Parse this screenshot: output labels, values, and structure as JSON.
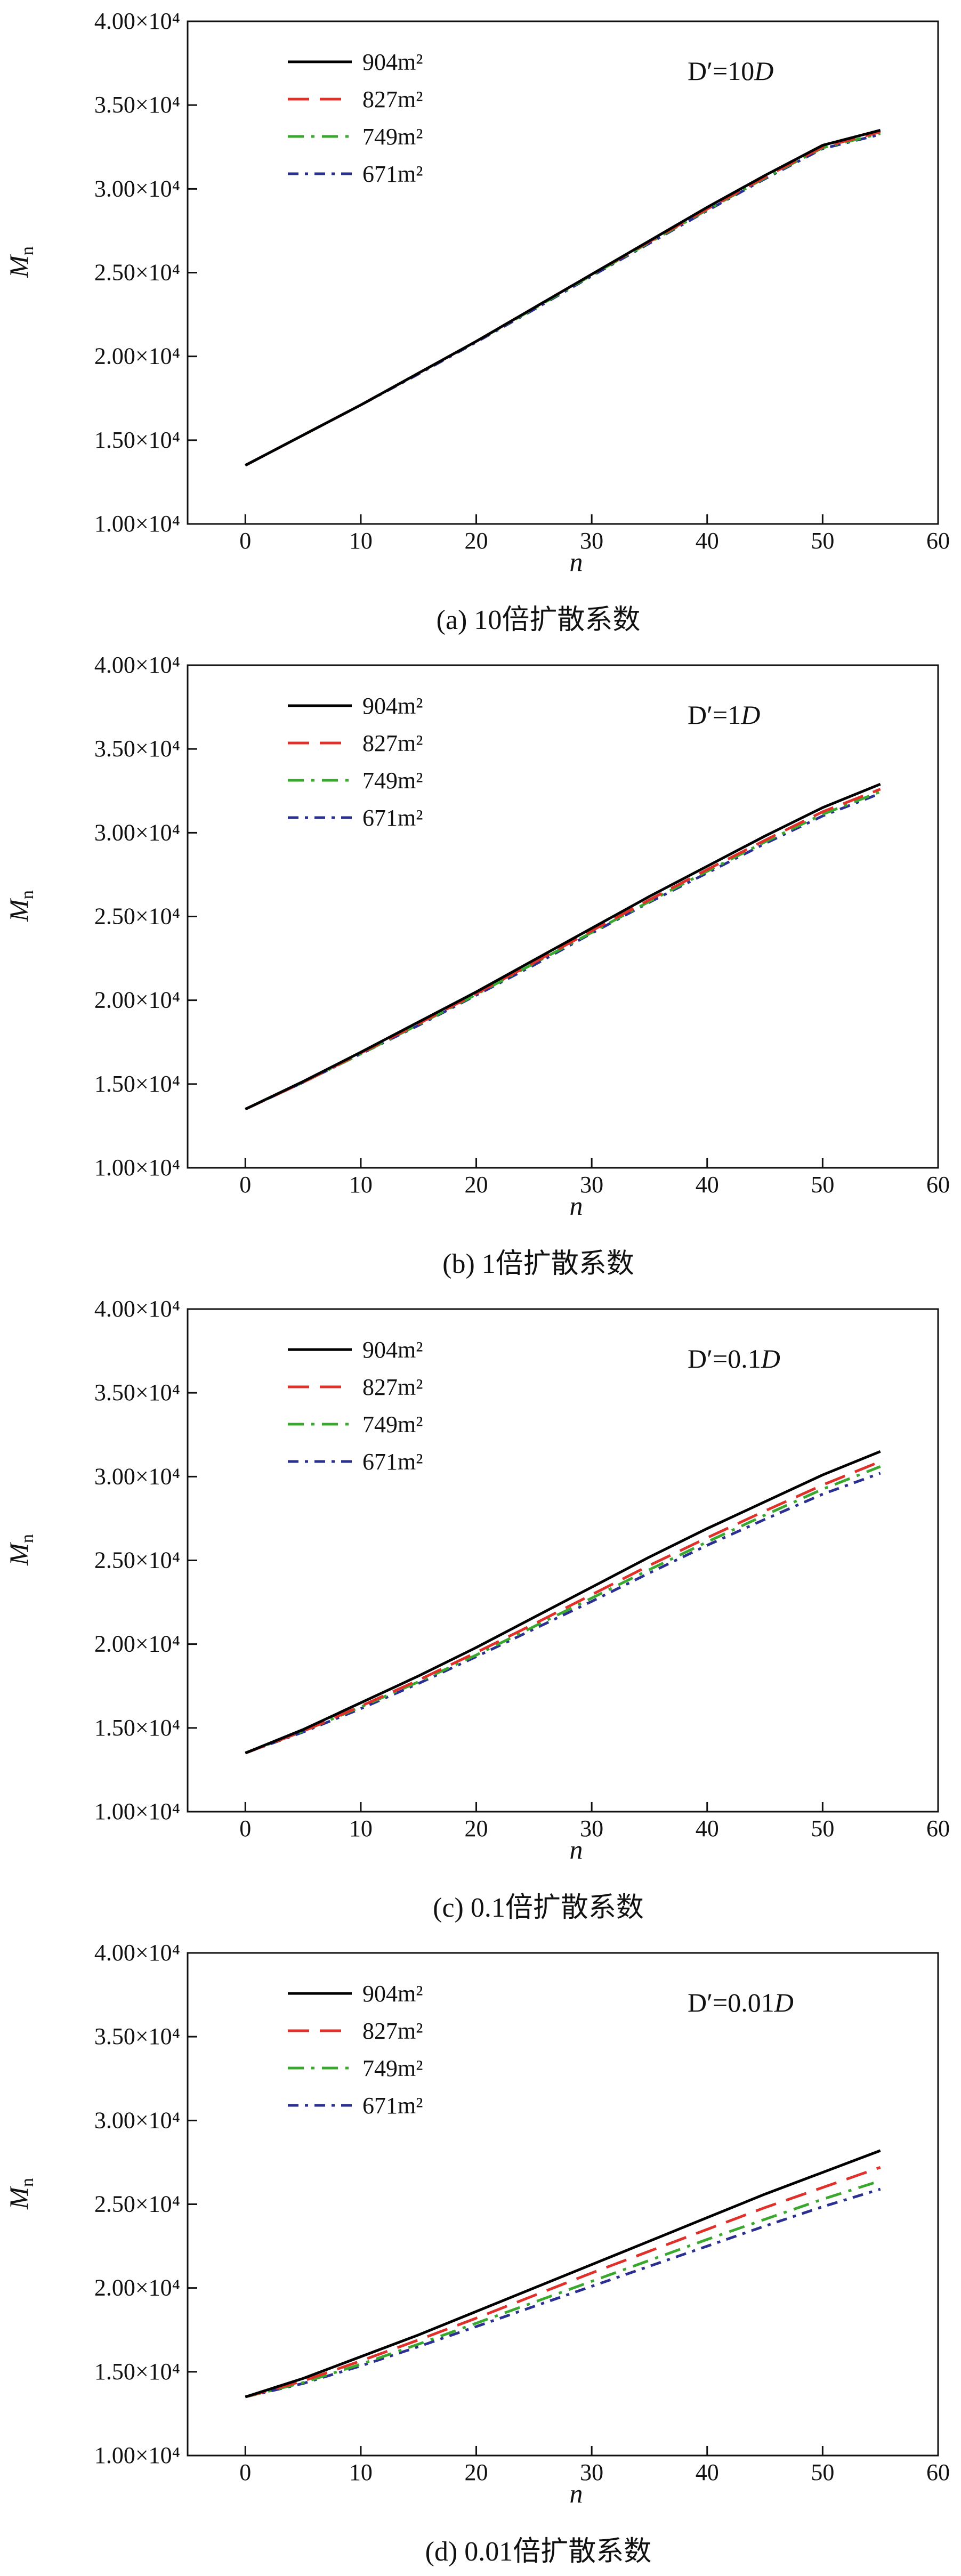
{
  "chart_data": [
    {
      "type": "line",
      "caption": "(a) 10倍扩散系数",
      "annotation": {
        "prefix": "D′=10",
        "suffix": "D"
      },
      "xlabel": "n",
      "ylabel": {
        "main": "M",
        "sub": "n"
      },
      "xlim": [
        -5,
        60
      ],
      "ylim": [
        10000,
        40000
      ],
      "xticks": [
        "0",
        "10",
        "20",
        "30",
        "40",
        "50",
        "60"
      ],
      "yticks": [
        "1.00×10⁴",
        "1.50×10⁴",
        "2.00×10⁴",
        "2.50×10⁴",
        "3.00×10⁴",
        "3.50×10⁴",
        "4.00×10⁴"
      ],
      "x": [
        0,
        5,
        10,
        15,
        20,
        25,
        30,
        35,
        40,
        45,
        50,
        55
      ],
      "series": [
        {
          "name": "904m²",
          "values": [
            13500,
            15300,
            17100,
            19000,
            20900,
            22900,
            24900,
            26900,
            28900,
            30800,
            32600,
            33500
          ]
        },
        {
          "name": "827m²",
          "values": [
            13500,
            15300,
            17100,
            19000,
            20900,
            22900,
            24900,
            26850,
            28800,
            30700,
            32500,
            33400
          ]
        },
        {
          "name": "749m²",
          "values": [
            13500,
            15300,
            17100,
            19000,
            20900,
            22850,
            24850,
            26800,
            28750,
            30650,
            32450,
            33300
          ]
        },
        {
          "name": "671m²",
          "values": [
            13500,
            15300,
            17100,
            18950,
            20850,
            22800,
            24800,
            26750,
            28700,
            30600,
            32400,
            33250
          ]
        }
      ]
    },
    {
      "type": "line",
      "caption": "(b) 1倍扩散系数",
      "annotation": {
        "prefix": "D′=1",
        "suffix": "D"
      },
      "xlabel": "n",
      "ylabel": {
        "main": "M",
        "sub": "n"
      },
      "xlim": [
        -5,
        60
      ],
      "ylim": [
        10000,
        40000
      ],
      "xticks": [
        "0",
        "10",
        "20",
        "30",
        "40",
        "50",
        "60"
      ],
      "yticks": [
        "1.00×10⁴",
        "1.50×10⁴",
        "2.00×10⁴",
        "2.50×10⁴",
        "3.00×10⁴",
        "3.50×10⁴",
        "4.00×10⁴"
      ],
      "x": [
        0,
        5,
        10,
        15,
        20,
        25,
        30,
        35,
        40,
        45,
        50,
        55
      ],
      "series": [
        {
          "name": "904m²",
          "values": [
            13500,
            15150,
            16900,
            18700,
            20500,
            22400,
            24300,
            26200,
            28000,
            29800,
            31500,
            32900
          ]
        },
        {
          "name": "827m²",
          "values": [
            13500,
            15100,
            16850,
            18600,
            20400,
            22250,
            24150,
            26000,
            27800,
            29550,
            31250,
            32600
          ]
        },
        {
          "name": "749m²",
          "values": [
            13500,
            15100,
            16800,
            18550,
            20350,
            22200,
            24050,
            25900,
            27700,
            29450,
            31100,
            32450
          ]
        },
        {
          "name": "671m²",
          "values": [
            13500,
            15100,
            16800,
            18500,
            20300,
            22100,
            24000,
            25850,
            27600,
            29350,
            31000,
            32350
          ]
        }
      ]
    },
    {
      "type": "line",
      "caption": "(c) 0.1倍扩散系数",
      "annotation": {
        "prefix": "D′=0.1",
        "suffix": "D"
      },
      "xlabel": "n",
      "ylabel": {
        "main": "M",
        "sub": "n"
      },
      "xlim": [
        -5,
        60
      ],
      "ylim": [
        10000,
        40000
      ],
      "xticks": [
        "0",
        "10",
        "20",
        "30",
        "40",
        "50",
        "60"
      ],
      "yticks": [
        "1.00×10⁴",
        "1.50×10⁴",
        "2.00×10⁴",
        "2.50×10⁴",
        "3.00×10⁴",
        "3.50×10⁴",
        "4.00×10⁴"
      ],
      "x": [
        0,
        5,
        10,
        15,
        20,
        25,
        30,
        35,
        40,
        45,
        50,
        55
      ],
      "series": [
        {
          "name": "904m²",
          "values": [
            13500,
            14900,
            16500,
            18100,
            19800,
            21600,
            23400,
            25200,
            26900,
            28500,
            30100,
            31500
          ]
        },
        {
          "name": "827m²",
          "values": [
            13500,
            14800,
            16300,
            17850,
            19500,
            21200,
            22950,
            24700,
            26350,
            27950,
            29500,
            30900
          ]
        },
        {
          "name": "749m²",
          "values": [
            13500,
            14800,
            16250,
            17750,
            19350,
            21050,
            22750,
            24450,
            26100,
            27700,
            29250,
            30600
          ]
        },
        {
          "name": "671m²",
          "values": [
            13500,
            14750,
            16150,
            17650,
            19250,
            20900,
            22550,
            24250,
            25900,
            27450,
            28950,
            30200
          ]
        }
      ]
    },
    {
      "type": "line",
      "caption": "(d) 0.01倍扩散系数",
      "annotation": {
        "prefix": "D′=0.01",
        "suffix": "D"
      },
      "xlabel": "n",
      "ylabel": {
        "main": "M",
        "sub": "n"
      },
      "xlim": [
        -5,
        60
      ],
      "ylim": [
        10000,
        40000
      ],
      "xticks": [
        "0",
        "10",
        "20",
        "30",
        "40",
        "50",
        "60"
      ],
      "yticks": [
        "1.00×10⁴",
        "1.50×10⁴",
        "2.00×10⁴",
        "2.50×10⁴",
        "3.00×10⁴",
        "3.50×10⁴",
        "4.00×10⁴"
      ],
      "x": [
        0,
        5,
        10,
        15,
        20,
        25,
        30,
        35,
        40,
        45,
        50,
        55
      ],
      "series": [
        {
          "name": "904m²",
          "values": [
            13500,
            14600,
            15900,
            17200,
            18600,
            20000,
            21400,
            22800,
            24200,
            25600,
            26900,
            28200
          ]
        },
        {
          "name": "827m²",
          "values": [
            13500,
            14450,
            15650,
            16900,
            18200,
            19550,
            20900,
            22200,
            23500,
            24800,
            26000,
            27200
          ]
        },
        {
          "name": "749m²",
          "values": [
            13500,
            14350,
            15450,
            16650,
            17900,
            19150,
            20400,
            21650,
            22900,
            24100,
            25300,
            26400
          ]
        },
        {
          "name": "671m²",
          "values": [
            13500,
            14300,
            15350,
            16500,
            17700,
            18900,
            20100,
            21300,
            22500,
            23700,
            24850,
            25900
          ]
        }
      ]
    }
  ],
  "series_style": {
    "colors": [
      "#000000",
      "#e0302a",
      "#3aa82e",
      "#2b2f8f"
    ],
    "dash": [
      "none",
      "40,20",
      "30,14,6,14",
      "20,12,6,12"
    ],
    "icons": [
      "solid-line",
      "dashed-line",
      "dash-dot-line",
      "dash-dot-line"
    ]
  }
}
